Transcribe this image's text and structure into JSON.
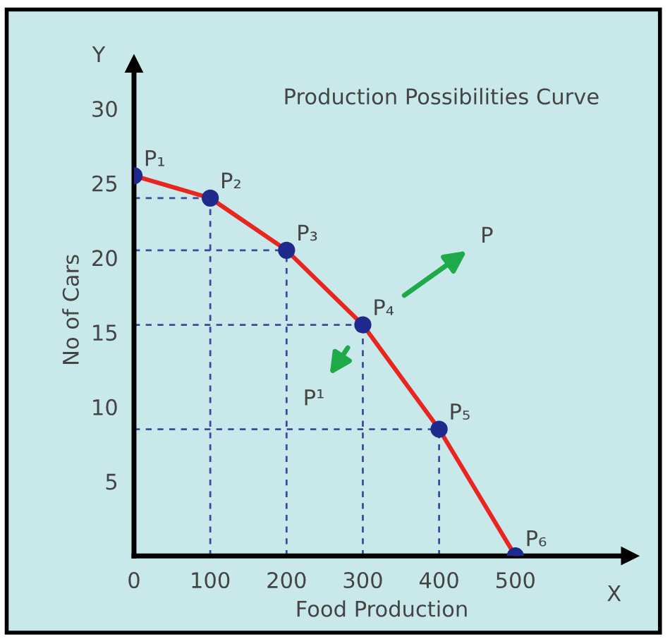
{
  "chart_data": {
    "type": "line",
    "title": "Production Possibilities Curve",
    "xlabel": "Food Production",
    "ylabel": "No of Cars",
    "x": [
      0,
      100,
      200,
      300,
      400,
      500
    ],
    "series": [
      {
        "color": "#e8251f",
        "colors": [
          "#1f2a8c",
          "#1f2a8c",
          "#1f2a8c",
          "#1f2a8c",
          "#1f2a8c",
          "#1f2a8c"
        ],
        "values": [
          25.5,
          24,
          20.5,
          15.5,
          8.5,
          0
        ],
        "marker": "circle"
      }
    ],
    "annotations": [
      {
        "text": "P₁",
        "x": 0,
        "y": 25.5
      },
      {
        "text": "P₂",
        "x": 100,
        "y": 24
      },
      {
        "text": "P₃",
        "x": 200,
        "y": 20.5
      },
      {
        "text": "P₄",
        "x": 300,
        "y": 15.5
      },
      {
        "text": "P₅",
        "x": 400,
        "y": 8.5
      },
      {
        "text": "P₆",
        "x": 500,
        "y": 0
      },
      "P",
      "P¹",
      "X",
      "Y"
    ],
    "xlim": [
      0,
      650
    ],
    "ylim": [
      0,
      33
    ],
    "xticks": [
      0,
      100,
      200,
      300,
      400,
      500
    ],
    "yticks": [
      5,
      10,
      15,
      20,
      25,
      30
    ],
    "grid": false,
    "legend": false
  }
}
